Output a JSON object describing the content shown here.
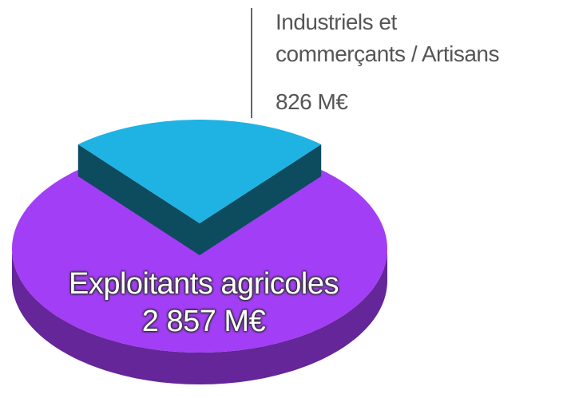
{
  "chart_data": {
    "type": "pie3d",
    "categories": [
      "Industriels et\ncommerçants / Artisans",
      "Exploitants agricoles"
    ],
    "values": [
      826,
      2857
    ],
    "value_labels": [
      "826 M€",
      "2 857 M€"
    ],
    "colors": [
      "#1fb3e3",
      "#a23ef5"
    ]
  }
}
